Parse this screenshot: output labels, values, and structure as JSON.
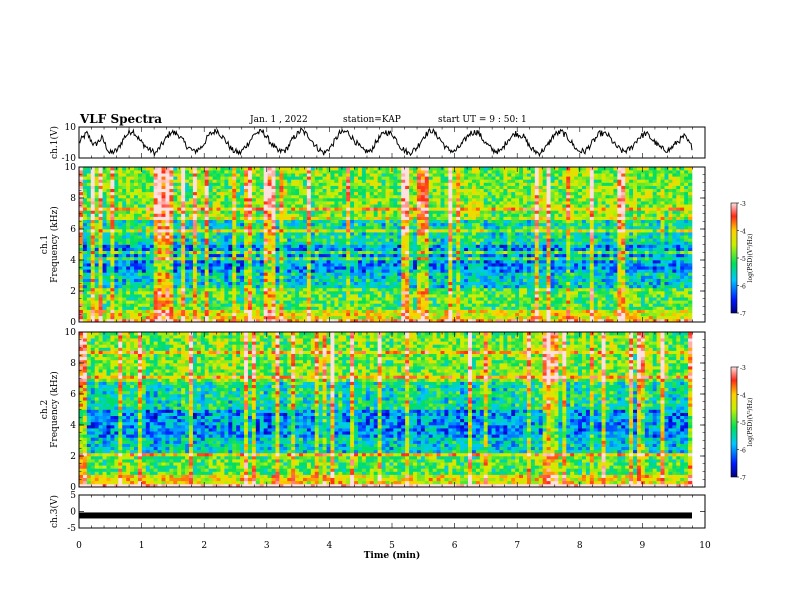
{
  "header": {
    "title": "VLF Spectra",
    "date": "Jan. 1 , 2022",
    "station": "station=KAP",
    "start": "start UT = 9 : 50: 1"
  },
  "colors": {
    "spec_band_high": "#ff2a1a",
    "spec_band_mid": "#ffd000",
    "spec_band_low": "#00e05a",
    "spec_band_min": "#0018ff"
  },
  "chart_data": [
    {
      "type": "line",
      "ylabel": "ch.1(V)",
      "ylim": [
        -10,
        10
      ],
      "yticks": [
        "10",
        "-10"
      ],
      "xlim": [
        0,
        10
      ],
      "description_series": "noisy VLF waveform oscillating between about -8 and 8 V",
      "y_approx": [
        0,
        6,
        -2,
        3,
        -7,
        -5,
        4,
        8,
        1,
        -4,
        -7,
        0,
        7,
        5,
        -2,
        -6,
        -3,
        5,
        8,
        2,
        -5,
        -7,
        -1,
        6,
        7,
        0,
        -6,
        -5,
        3,
        8,
        4,
        -3,
        -7,
        -2,
        6,
        7,
        1,
        -5,
        -6,
        2,
        7,
        5,
        -3,
        -7,
        -4,
        4,
        8,
        3,
        -4,
        -6,
        -1,
        6,
        7,
        0,
        -5,
        -6,
        2,
        6,
        4,
        -4,
        -7,
        -3,
        5,
        7,
        2,
        -5,
        -6,
        0,
        6,
        5,
        -2,
        -6,
        -4,
        3,
        6,
        1,
        -4,
        -5,
        0,
        4,
        -3
      ]
    },
    {
      "type": "heatmap",
      "ylabel": "ch.1\nFrequency (kHz)",
      "ylim": [
        0,
        10
      ],
      "yticks": [
        "0",
        "2",
        "4",
        "6",
        "8",
        "10"
      ],
      "xlim": [
        0,
        10
      ],
      "colorbar": {
        "label": "log(PSD)(V²/Hz)",
        "ticks": [
          "-3",
          "-4",
          "-5",
          "-6",
          "-7"
        ],
        "range": [
          -7,
          -3
        ]
      }
    },
    {
      "type": "heatmap",
      "ylabel": "ch.2\nFrequency (kHz)",
      "ylim": [
        0,
        10
      ],
      "yticks": [
        "0",
        "2",
        "4",
        "6",
        "8",
        "10"
      ],
      "xlim": [
        0,
        10
      ],
      "colorbar": {
        "label": "log(PSD)(V²/Hz)",
        "ticks": [
          "-3",
          "-4",
          "-5",
          "-6",
          "-7"
        ],
        "range": [
          -7,
          -3
        ]
      }
    },
    {
      "type": "line",
      "ylabel": "ch.3(V)",
      "ylim": [
        -5,
        5
      ],
      "yticks": [
        "5",
        "0",
        "-5"
      ],
      "xlim": [
        0,
        10
      ],
      "xticks": [
        "0",
        "1",
        "2",
        "3",
        "4",
        "5",
        "6",
        "7",
        "8",
        "9",
        "10"
      ],
      "xlabel": "Time (min)",
      "y_approx": [
        -1.2,
        -1.2
      ]
    }
  ]
}
